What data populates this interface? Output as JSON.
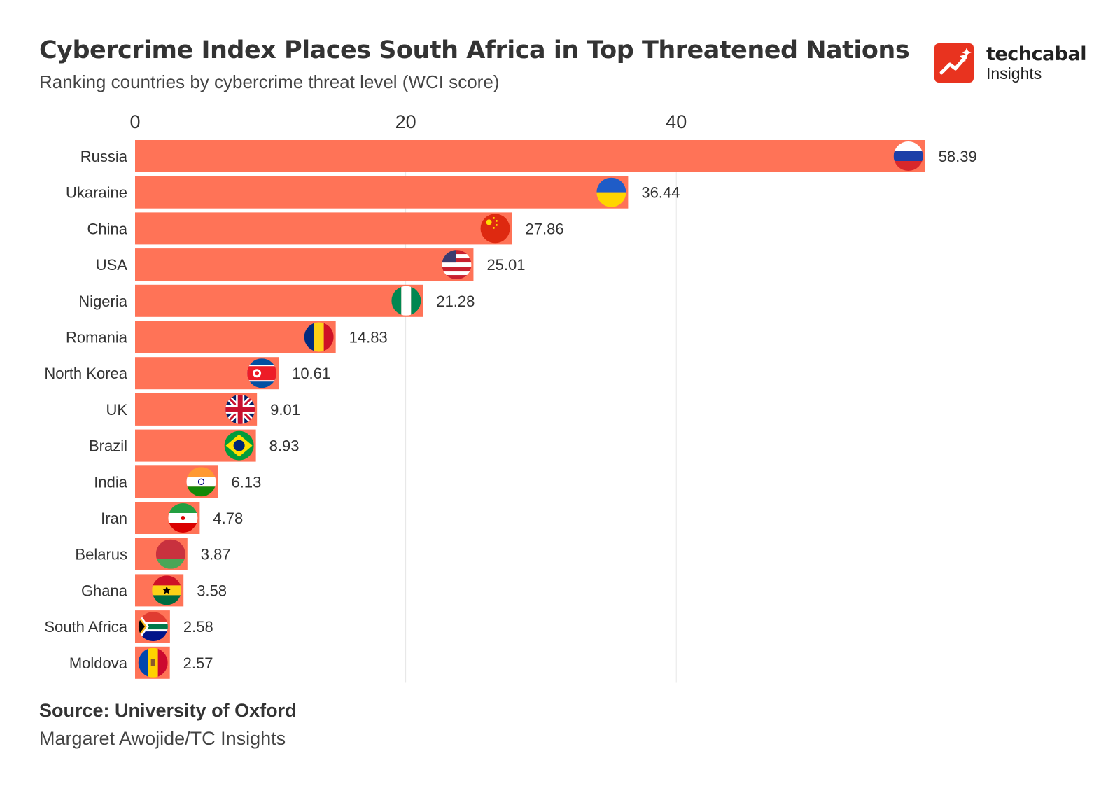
{
  "header": {
    "title": "Cybercrime Index Places South Africa in Top Threatened Nations",
    "subtitle": "Ranking countries by cybercrime threat level (WCI score)"
  },
  "logo": {
    "word": "techcabal",
    "sub": "Insights"
  },
  "footer": {
    "source": "Source: University of Oxford",
    "credit": "Margaret Awojide/TC Insights"
  },
  "colors": {
    "bar": "#ff7357",
    "grid": "#e6e6e6",
    "text": "#333333",
    "brand": "#e8331f"
  },
  "chart_data": {
    "type": "bar",
    "orientation": "horizontal",
    "categories": [
      "Russia",
      "Ukaraine",
      "China",
      "USA",
      "Nigeria",
      "Romania",
      "North Korea",
      "UK",
      "Brazil",
      "India",
      "Iran",
      "Belarus",
      "Ghana",
      "South Africa",
      "Moldova"
    ],
    "values": [
      58.39,
      36.44,
      27.86,
      25.01,
      21.28,
      14.83,
      10.61,
      9.01,
      8.93,
      6.13,
      4.78,
      3.87,
      3.58,
      2.58,
      2.57
    ],
    "value_labels": [
      "58.39",
      "36.44",
      "27.86",
      "25.01",
      "21.28",
      "14.83",
      "10.61",
      "9.01",
      "8.93",
      "6.13",
      "4.78",
      "3.87",
      "3.58",
      "2.58",
      "2.57"
    ],
    "flag_icons": [
      "russia-flag-icon",
      "ukraine-flag-icon",
      "china-flag-icon",
      "usa-flag-icon",
      "nigeria-flag-icon",
      "romania-flag-icon",
      "north-korea-flag-icon",
      "uk-flag-icon",
      "brazil-flag-icon",
      "india-flag-icon",
      "iran-flag-icon",
      "belarus-flag-icon",
      "ghana-flag-icon",
      "south-africa-flag-icon",
      "moldova-flag-icon"
    ],
    "xticks": [
      0,
      20,
      40
    ],
    "xtick_labels": [
      "0",
      "20",
      "40"
    ],
    "xaxis_position": "top",
    "grid": true
  }
}
